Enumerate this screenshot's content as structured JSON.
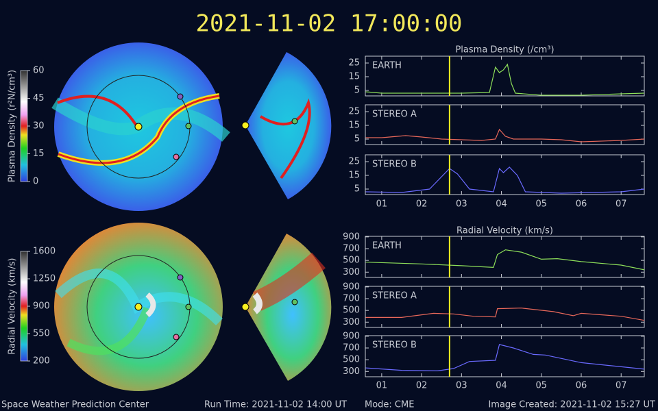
{
  "header": {
    "title": "2021-11-02 17:00:00"
  },
  "colorbars": [
    {
      "label": "Plasma Density (r²N/cm³)",
      "lim": [
        0,
        60
      ],
      "ticks": [
        0,
        15,
        30,
        45,
        60
      ]
    },
    {
      "label": "Radial Velocity (km/s)",
      "lim": [
        200,
        1600
      ],
      "ticks": [
        200,
        550,
        900,
        1250,
        1600
      ]
    }
  ],
  "chart_data": [
    {
      "type": "line",
      "title": "Plasma Density (/cm³)",
      "xlim": [
        0.59,
        7.58
      ],
      "xticks": [
        {
          "value": 1,
          "label": "01"
        },
        {
          "value": 2,
          "label": "02"
        },
        {
          "value": 3,
          "label": "03"
        },
        {
          "value": 4,
          "label": "04"
        },
        {
          "value": 5,
          "label": "05"
        },
        {
          "value": 6,
          "label": "06"
        },
        {
          "value": 7,
          "label": "07"
        }
      ],
      "ylim": [
        1,
        30
      ],
      "yticks": [
        5,
        15,
        25
      ],
      "time_marker": 2.7,
      "time_marker_color": "#f0f020",
      "series": [
        {
          "name": "EARTH",
          "color": "#8ee05a",
          "x": [
            0.6,
            1.0,
            2.0,
            3.0,
            3.7,
            3.85,
            3.95,
            4.05,
            4.15,
            4.25,
            4.35,
            5.0,
            6.0,
            7.0,
            7.58
          ],
          "values": [
            4,
            3,
            3,
            3,
            3.5,
            22,
            18,
            20,
            24,
            10,
            3,
            1.5,
            1.5,
            2.5,
            3
          ]
        },
        {
          "name": "STEREO A",
          "color": "#e8685a",
          "x": [
            0.6,
            1.0,
            1.6,
            2.0,
            2.5,
            3.0,
            3.5,
            3.85,
            3.95,
            4.1,
            4.3,
            5.0,
            5.5,
            6.0,
            7.0,
            7.58
          ],
          "values": [
            6,
            6,
            7.5,
            6.5,
            5,
            4.5,
            4,
            5,
            12,
            7,
            5,
            5,
            4.5,
            3,
            4,
            5
          ]
        },
        {
          "name": "STEREO B",
          "color": "#6a6aff",
          "x": [
            0.6,
            1.5,
            2.2,
            2.5,
            2.7,
            2.9,
            3.2,
            3.8,
            3.95,
            4.05,
            4.2,
            4.4,
            4.6,
            5.5,
            7.0,
            7.58
          ],
          "values": [
            3,
            2.5,
            5,
            14,
            20,
            16,
            5,
            3,
            20,
            17,
            21,
            15,
            3,
            2,
            3,
            5
          ]
        }
      ]
    },
    {
      "type": "line",
      "title": "Radial Velocity (km/s)",
      "xlim": [
        0.59,
        7.58
      ],
      "xticks": [
        {
          "value": 1,
          "label": "01"
        },
        {
          "value": 2,
          "label": "02"
        },
        {
          "value": 3,
          "label": "03"
        },
        {
          "value": 4,
          "label": "04"
        },
        {
          "value": 5,
          "label": "05"
        },
        {
          "value": 6,
          "label": "06"
        },
        {
          "value": 7,
          "label": "07"
        }
      ],
      "ylim": [
        210,
        910
      ],
      "yticks": [
        300,
        500,
        700,
        900
      ],
      "time_marker": 2.7,
      "time_marker_color": "#f0f020",
      "series": [
        {
          "name": "EARTH",
          "color": "#8ee05a",
          "x": [
            0.6,
            2.0,
            3.0,
            3.8,
            3.9,
            4.1,
            4.5,
            5.0,
            5.4,
            6.0,
            7.0,
            7.58
          ],
          "values": [
            470,
            440,
            410,
            380,
            600,
            680,
            640,
            520,
            530,
            480,
            420,
            340
          ]
        },
        {
          "name": "STEREO A",
          "color": "#e8685a",
          "x": [
            0.6,
            1.5,
            2.3,
            2.8,
            3.3,
            3.85,
            3.9,
            4.5,
            5.3,
            5.8,
            6.0,
            7.0,
            7.58
          ],
          "values": [
            380,
            380,
            450,
            440,
            400,
            390,
            530,
            540,
            480,
            410,
            450,
            400,
            330
          ]
        },
        {
          "name": "STEREO B",
          "color": "#6a6aff",
          "x": [
            0.6,
            1.5,
            2.4,
            2.8,
            3.2,
            3.85,
            3.95,
            4.3,
            4.8,
            5.1,
            6.0,
            7.0,
            7.58
          ],
          "values": [
            360,
            320,
            310,
            350,
            470,
            490,
            760,
            700,
            590,
            580,
            450,
            380,
            340
          ]
        }
      ]
    }
  ],
  "footer": {
    "center": "Space Weather Prediction Center",
    "run_time": "Run Time: 2021-11-02 14:00 UT",
    "mode": "Mode: CME",
    "created": "Image Created: 2021-11-02 15:27 UT"
  }
}
